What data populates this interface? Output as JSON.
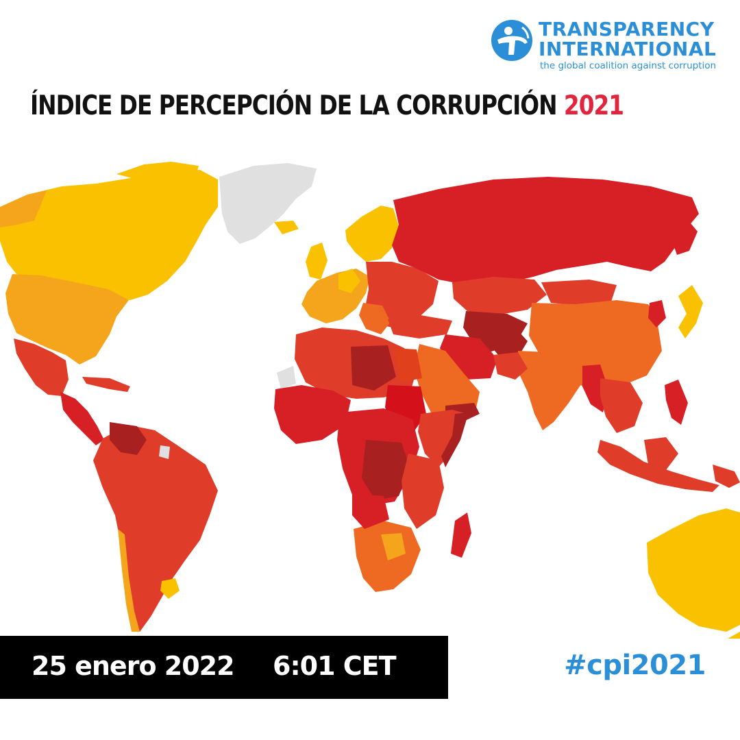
{
  "logo": {
    "line1": "TRANSPARENCY",
    "line2": "INTERNATIONAL",
    "tagline": "the global coalition against corruption",
    "icon": "ti-figure-logo-icon"
  },
  "title": {
    "main": "ÍNDICE DE PERCEPCIÓN DE LA CORRUPCIÓN ",
    "year": "2021"
  },
  "colors": {
    "accent_red": "#e0253c",
    "brand_blue": "#2a8fd6",
    "very_clean": "#f9c100",
    "clean": "#f4a51b",
    "mid": "#ee6a22",
    "high": "#e03c2a",
    "very_high": "#d71f26",
    "highest": "#a82020",
    "no_data": "#e0e0e0"
  },
  "footer": {
    "date": "25 enero 2022",
    "time": "6:01 CET",
    "hashtag": "#cpi2021"
  }
}
